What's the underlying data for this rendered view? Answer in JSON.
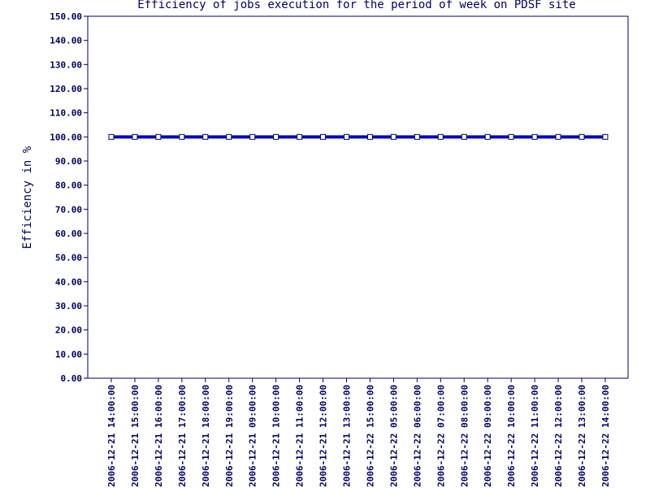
{
  "chart_data": {
    "type": "line",
    "title": "Efficiency of jobs execution for the period of week on  PDSF site",
    "xlabel": "",
    "ylabel": "Efficiency in %",
    "ylim": [
      0,
      150
    ],
    "yticks": [
      "0.00",
      "10.00",
      "20.00",
      "30.00",
      "40.00",
      "50.00",
      "60.00",
      "70.00",
      "80.00",
      "90.00",
      "100.00",
      "110.00",
      "120.00",
      "130.00",
      "140.00",
      "150.00"
    ],
    "categories": [
      "2006-12-21 14:00:00",
      "2006-12-21 15:00:00",
      "2006-12-21 16:00:00",
      "2006-12-21 17:00:00",
      "2006-12-21 18:00:00",
      "2006-12-21 19:00:00",
      "2006-12-21 09:00:00",
      "2006-12-21 10:00:00",
      "2006-12-21 11:00:00",
      "2006-12-21 12:00:00",
      "2006-12-21 13:00:00",
      "2006-12-22 15:00:00",
      "2006-12-22 05:00:00",
      "2006-12-22 06:00:00",
      "2006-12-22 07:00:00",
      "2006-12-22 08:00:00",
      "2006-12-22 09:00:00",
      "2006-12-22 10:00:00",
      "2006-12-22 11:00:00",
      "2006-12-22 12:00:00",
      "2006-12-22 13:00:00",
      "2006-12-22 14:00:00"
    ],
    "series": [
      {
        "values": [
          100,
          100,
          100,
          100,
          100,
          100,
          100,
          100,
          100,
          100,
          100,
          100,
          100,
          100,
          100,
          100,
          100,
          100,
          100,
          100,
          100,
          100
        ]
      }
    ],
    "grid": false,
    "colors": {
      "line": "#0000cc",
      "text": "#000066",
      "axis": "#000066"
    }
  }
}
